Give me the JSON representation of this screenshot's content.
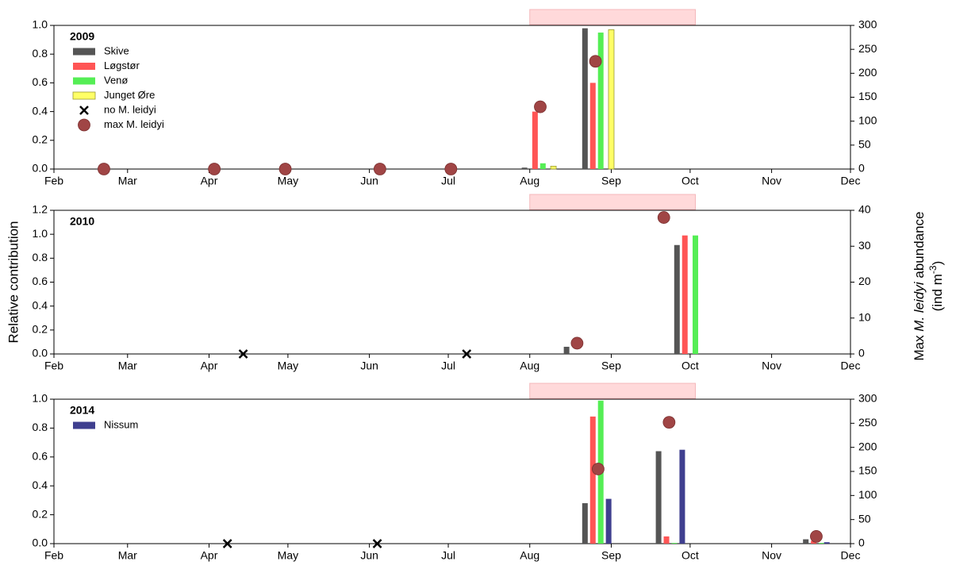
{
  "chart_data": [
    {
      "type": "bar",
      "panel_label": "2009",
      "xlim": [
        32,
        335
      ],
      "xticks": [
        {
          "value": 32,
          "label": "Feb"
        },
        {
          "value": 60,
          "label": "Mar"
        },
        {
          "value": 91,
          "label": "Apr"
        },
        {
          "value": 121,
          "label": "May"
        },
        {
          "value": 152,
          "label": "Jun"
        },
        {
          "value": 182,
          "label": "Jul"
        },
        {
          "value": 213,
          "label": "Aug"
        },
        {
          "value": 244,
          "label": "Sep"
        },
        {
          "value": 274,
          "label": "Oct"
        },
        {
          "value": 305,
          "label": "Nov"
        },
        {
          "value": 335,
          "label": "Dec"
        }
      ],
      "ylim": [
        0,
        1.0
      ],
      "yticks": [
        {
          "value": 0,
          "label": "0.0"
        },
        {
          "value": 0.2,
          "label": "0.2"
        },
        {
          "value": 0.4,
          "label": "0.4"
        },
        {
          "value": 0.6,
          "label": "0.6"
        },
        {
          "value": 0.8,
          "label": "0.8"
        },
        {
          "value": 1.0,
          "label": "1.0"
        }
      ],
      "y2lim": [
        0,
        300
      ],
      "y2ticks": [
        0,
        50,
        100,
        150,
        200,
        250,
        300
      ],
      "highlight": [
        213,
        276
      ],
      "highlight_color": "#ffd9da",
      "series": [
        {
          "name": "Skive",
          "color": "#555555",
          "x": [
            211,
            234
          ],
          "values": [
            0.01,
            0.98
          ]
        },
        {
          "name": "Løgstør",
          "color": "#ff5555",
          "x": [
            215,
            237
          ],
          "values": [
            0.4,
            0.6
          ]
        },
        {
          "name": "Venø",
          "color": "#55ee55",
          "x": [
            218,
            240
          ],
          "values": [
            0.04,
            0.95
          ]
        },
        {
          "name": "Junget Øre",
          "color": "#ffff66",
          "x": [
            222,
            244
          ],
          "values": [
            0.02,
            0.97
          ]
        },
        {
          "name": "no M. leidyi",
          "type": "scatter",
          "marker": "x",
          "axis": "y2",
          "color": "#000000",
          "x": [],
          "values": []
        },
        {
          "name": "max M. leidyi",
          "type": "scatter",
          "marker": "circle",
          "axis": "y2",
          "color": "#a04545",
          "x": [
            51,
            93,
            120,
            156,
            183,
            217,
            238
          ],
          "values": [
            0,
            0,
            0,
            0,
            0,
            130,
            225
          ]
        }
      ]
    },
    {
      "type": "bar",
      "panel_label": "2010",
      "xlim": [
        32,
        335
      ],
      "xticks": [
        {
          "value": 32,
          "label": "Feb"
        },
        {
          "value": 60,
          "label": "Mar"
        },
        {
          "value": 91,
          "label": "Apr"
        },
        {
          "value": 121,
          "label": "May"
        },
        {
          "value": 152,
          "label": "Jun"
        },
        {
          "value": 182,
          "label": "Jul"
        },
        {
          "value": 213,
          "label": "Aug"
        },
        {
          "value": 244,
          "label": "Sep"
        },
        {
          "value": 274,
          "label": "Oct"
        },
        {
          "value": 305,
          "label": "Nov"
        },
        {
          "value": 335,
          "label": "Dec"
        }
      ],
      "ylim": [
        0,
        1.2
      ],
      "yticks": [
        {
          "value": 0,
          "label": "0.0"
        },
        {
          "value": 0.2,
          "label": "0.2"
        },
        {
          "value": 0.4,
          "label": "0.4"
        },
        {
          "value": 0.6,
          "label": "0.6"
        },
        {
          "value": 0.8,
          "label": "0.8"
        },
        {
          "value": 1.0,
          "label": "1.0"
        },
        {
          "value": 1.2,
          "label": "1.2"
        }
      ],
      "y2lim": [
        0,
        40
      ],
      "y2ticks": [
        0,
        10,
        20,
        30,
        40
      ],
      "highlight": [
        213,
        276
      ],
      "highlight_color": "#ffd9da",
      "ylabel": "Relative contribution",
      "y2label": {
        "pre": "Max ",
        "italic": "M. leidyi",
        "post": " abundance"
      },
      "y2unit": {
        "pre": "(ind m",
        "sup": "-3",
        "post": ")"
      },
      "series": [
        {
          "color": "#555555",
          "x": [
            227,
            269
          ],
          "values": [
            0.06,
            0.91
          ]
        },
        {
          "color": "#ff5555",
          "x": [
            272
          ],
          "values": [
            0.99
          ]
        },
        {
          "color": "#55ee55",
          "x": [
            276
          ],
          "values": [
            0.99
          ]
        },
        {
          "type": "scatter",
          "marker": "x",
          "axis": "y2",
          "color": "#000000",
          "x": [
            104,
            189
          ],
          "values": [
            0,
            0
          ]
        },
        {
          "type": "scatter",
          "marker": "circle",
          "axis": "y2",
          "color": "#a04545",
          "x": [
            231,
            264
          ],
          "values": [
            3,
            38
          ]
        }
      ]
    },
    {
      "type": "bar",
      "panel_label": "2014",
      "xlim": [
        32,
        335
      ],
      "xticks": [
        {
          "value": 32,
          "label": "Feb"
        },
        {
          "value": 60,
          "label": "Mar"
        },
        {
          "value": 91,
          "label": "Apr"
        },
        {
          "value": 121,
          "label": "May"
        },
        {
          "value": 152,
          "label": "Jun"
        },
        {
          "value": 182,
          "label": "Jul"
        },
        {
          "value": 213,
          "label": "Aug"
        },
        {
          "value": 244,
          "label": "Sep"
        },
        {
          "value": 274,
          "label": "Oct"
        },
        {
          "value": 305,
          "label": "Nov"
        },
        {
          "value": 335,
          "label": "Dec"
        }
      ],
      "ylim": [
        0,
        1.0
      ],
      "yticks": [
        {
          "value": 0,
          "label": "0.0"
        },
        {
          "value": 0.2,
          "label": "0.2"
        },
        {
          "value": 0.4,
          "label": "0.4"
        },
        {
          "value": 0.6,
          "label": "0.6"
        },
        {
          "value": 0.8,
          "label": "0.8"
        },
        {
          "value": 1.0,
          "label": "1.0"
        }
      ],
      "y2lim": [
        0,
        300
      ],
      "y2ticks": [
        0,
        50,
        100,
        150,
        200,
        250,
        300
      ],
      "highlight": [
        213,
        276
      ],
      "highlight_color": "#ffd9da",
      "series": [
        {
          "color": "#555555",
          "x": [
            234,
            262,
            318
          ],
          "values": [
            0.28,
            0.64,
            0.03
          ]
        },
        {
          "color": "#ff5555",
          "x": [
            237,
            265,
            321
          ],
          "values": [
            0.88,
            0.05,
            0.02
          ]
        },
        {
          "color": "#55ee55",
          "x": [
            240,
            268,
            324
          ],
          "values": [
            0.99,
            0.005,
            0.005
          ]
        },
        {
          "name": "Nissum",
          "color": "#3f3f8f",
          "x": [
            243,
            271,
            326
          ],
          "values": [
            0.31,
            0.65,
            0.01
          ]
        },
        {
          "type": "scatter",
          "marker": "x",
          "axis": "y2",
          "color": "#000000",
          "x": [
            98,
            155
          ],
          "values": [
            0,
            0
          ]
        },
        {
          "type": "scatter",
          "marker": "circle",
          "axis": "y2",
          "color": "#a04545",
          "x": [
            239,
            266,
            322
          ],
          "values": [
            155,
            252,
            15
          ]
        }
      ]
    }
  ]
}
